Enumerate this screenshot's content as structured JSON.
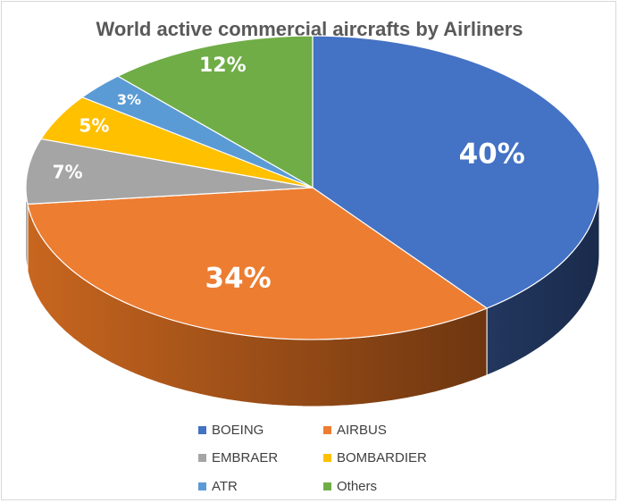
{
  "chart_data": {
    "type": "pie",
    "title": "World active commercial aircrafts by Airliners",
    "categories": [
      "BOEING",
      "AIRBUS",
      "EMBRAER",
      "BOMBARDIER",
      "ATR",
      "Others"
    ],
    "values": [
      40,
      34,
      7,
      5,
      3,
      12
    ],
    "labels": [
      "40%",
      "34%",
      "7%",
      "5%",
      "3%",
      "12%"
    ],
    "colors": [
      "#4472C4",
      "#ED7D31",
      "#A5A5A5",
      "#FFC000",
      "#5B9BD5",
      "#70AD47"
    ],
    "legend_position": "bottom",
    "style": "3d"
  }
}
